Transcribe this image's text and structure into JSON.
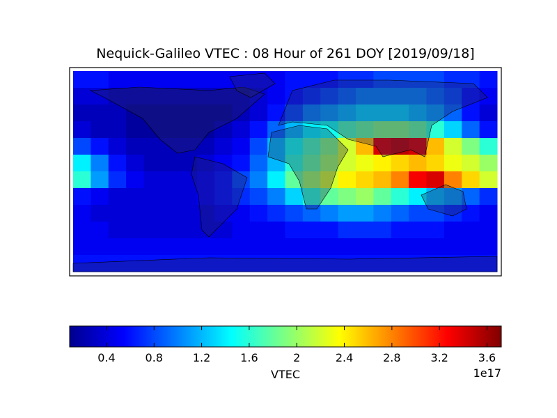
{
  "chart_data": {
    "type": "heatmap",
    "title": "Nequick-Galileo VTEC : 08 Hour of 261 DOY [2019/09/18]",
    "colorbar_label": "VTEC",
    "colorbar_offset": "1e17",
    "colormap": "jet",
    "clim": [
      0.09,
      3.72
    ],
    "cticks": [
      0.4,
      0.8,
      1.2,
      1.6,
      2.0,
      2.4,
      2.8,
      3.2,
      3.6
    ],
    "values": [
      [
        0.6,
        0.6,
        0.5,
        0.5,
        0.5,
        0.5,
        0.5,
        0.5,
        0.5,
        0.5,
        0.5,
        0.5,
        0.6,
        0.6,
        0.6,
        0.7,
        0.7,
        0.8,
        0.8,
        0.8,
        0.8,
        0.7,
        0.7,
        0.6
      ],
      [
        0.4,
        0.4,
        0.3,
        0.3,
        0.3,
        0.3,
        0.3,
        0.3,
        0.3,
        0.3,
        0.4,
        0.5,
        0.6,
        0.7,
        0.8,
        0.9,
        1.0,
        1.0,
        1.0,
        1.0,
        0.9,
        0.8,
        0.6,
        0.5
      ],
      [
        0.3,
        0.3,
        0.3,
        0.2,
        0.2,
        0.2,
        0.2,
        0.2,
        0.2,
        0.3,
        0.4,
        0.6,
        0.8,
        1.0,
        1.1,
        1.2,
        1.3,
        1.3,
        1.3,
        1.2,
        1.1,
        0.9,
        0.6,
        0.4
      ],
      [
        0.4,
        0.3,
        0.3,
        0.2,
        0.2,
        0.2,
        0.2,
        0.2,
        0.3,
        0.4,
        0.6,
        0.9,
        1.2,
        1.4,
        1.5,
        1.7,
        1.8,
        1.9,
        1.9,
        1.8,
        1.6,
        1.3,
        0.9,
        0.6
      ],
      [
        0.8,
        0.6,
        0.4,
        0.3,
        0.3,
        0.3,
        0.3,
        0.3,
        0.4,
        0.5,
        0.8,
        1.2,
        1.5,
        1.7,
        1.9,
        2.2,
        2.6,
        3.4,
        3.5,
        3.4,
        2.6,
        2.2,
        1.9,
        1.6
      ],
      [
        1.4,
        1.0,
        0.6,
        0.4,
        0.3,
        0.3,
        0.3,
        0.4,
        0.5,
        0.6,
        0.9,
        1.2,
        1.6,
        1.8,
        2.0,
        2.2,
        2.3,
        2.4,
        2.5,
        2.6,
        2.5,
        2.3,
        2.2,
        2.0
      ],
      [
        1.6,
        1.1,
        0.7,
        0.5,
        0.4,
        0.4,
        0.4,
        0.5,
        0.6,
        0.8,
        1.0,
        1.4,
        1.8,
        2.0,
        2.2,
        2.4,
        2.5,
        2.6,
        2.8,
        3.3,
        3.4,
        2.8,
        2.5,
        2.2
      ],
      [
        0.6,
        0.5,
        0.4,
        0.4,
        0.4,
        0.4,
        0.4,
        0.5,
        0.6,
        0.7,
        0.8,
        1.0,
        1.3,
        1.6,
        1.8,
        1.9,
        2.0,
        1.8,
        1.6,
        1.4,
        1.2,
        1.1,
        0.9,
        0.7
      ],
      [
        0.5,
        0.4,
        0.4,
        0.4,
        0.4,
        0.4,
        0.4,
        0.4,
        0.5,
        0.5,
        0.6,
        0.7,
        0.8,
        0.9,
        1.0,
        1.1,
        1.1,
        1.0,
        0.9,
        0.8,
        0.8,
        0.7,
        0.6,
        0.5
      ],
      [
        0.5,
        0.5,
        0.4,
        0.4,
        0.4,
        0.4,
        0.4,
        0.4,
        0.4,
        0.5,
        0.5,
        0.5,
        0.6,
        0.6,
        0.6,
        0.7,
        0.7,
        0.7,
        0.6,
        0.6,
        0.6,
        0.5,
        0.5,
        0.5
      ],
      [
        0.5,
        0.5,
        0.5,
        0.5,
        0.5,
        0.5,
        0.5,
        0.5,
        0.5,
        0.5,
        0.5,
        0.5,
        0.5,
        0.5,
        0.5,
        0.5,
        0.5,
        0.5,
        0.5,
        0.5,
        0.5,
        0.5,
        0.5,
        0.5
      ],
      [
        0.6,
        0.6,
        0.6,
        0.6,
        0.6,
        0.6,
        0.6,
        0.6,
        0.6,
        0.6,
        0.6,
        0.6,
        0.6,
        0.6,
        0.6,
        0.6,
        0.6,
        0.6,
        0.6,
        0.6,
        0.6,
        0.6,
        0.6,
        0.6
      ]
    ]
  }
}
